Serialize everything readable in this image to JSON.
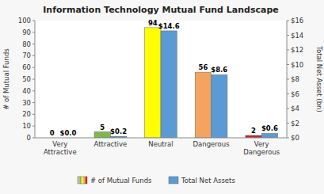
{
  "chart_data": {
    "type": "bar",
    "title": "Information Technology Mutual Fund Landscape",
    "categories": [
      "Very\nAttractive",
      "Attractive",
      "Neutral",
      "Dangerous",
      "Very\nDangerous"
    ],
    "series": [
      {
        "name": "# of Mutual Funds",
        "values": [
          0,
          5,
          94,
          56,
          2
        ],
        "colors": [
          "#c0c0c0",
          "#7db84a",
          "#ffff00",
          "#f4a460",
          "#cc2222"
        ]
      },
      {
        "name": "Total Net Assets",
        "axis": "y2",
        "color": "#5b9bd5",
        "values": [
          0.0,
          0.2,
          14.6,
          8.6,
          0.6
        ],
        "value_labels": [
          "$0.0",
          "$0.2",
          "$14.6",
          "$8.6",
          "$0.6"
        ]
      }
    ],
    "ylabel": "# of Mutual Funds",
    "y2label": "Total Net Asset (bn)",
    "ylim": [
      0,
      100
    ],
    "yticks": [
      0,
      10,
      20,
      30,
      40,
      50,
      60,
      70,
      80,
      90,
      100
    ],
    "y2lim": [
      0,
      16
    ],
    "y2ticks": [
      {
        "value": 0,
        "label": "$0"
      },
      {
        "value": 2,
        "label": "$2"
      },
      {
        "value": 4,
        "label": "$4"
      },
      {
        "value": 6,
        "label": "$6"
      },
      {
        "value": 8,
        "label": "$8"
      },
      {
        "value": 10,
        "label": "$10"
      },
      {
        "value": 12,
        "label": "$12"
      },
      {
        "value": 14,
        "label": "$14"
      },
      {
        "value": 16,
        "label": "$16"
      }
    ],
    "data_labels": true,
    "grid": false,
    "legend": "bottom"
  }
}
